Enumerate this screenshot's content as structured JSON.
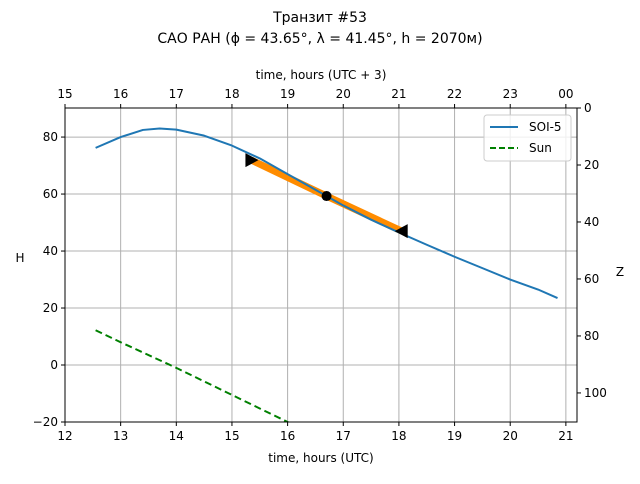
{
  "chart_data": {
    "type": "line",
    "title": "Транзит #53",
    "subtitle": "САО РАН (ϕ = 43.65°, λ = 41.45°, h = 2070м)",
    "xlabel": "time, hours (UTC)",
    "xlabel_top": "time, hours (UTC + 3)",
    "ylabel": "H",
    "ylabel_right": "Z",
    "xlim": [
      12,
      21.2
    ],
    "ylim": [
      -20,
      90.2
    ],
    "grid": true,
    "legend_placement": "top-right",
    "x_ticks": [
      "12",
      "13",
      "14",
      "15",
      "16",
      "17",
      "18",
      "19",
      "20",
      "21"
    ],
    "y_ticks": [
      "−20",
      "0",
      "20",
      "40",
      "60",
      "80"
    ],
    "x_top_ticks": [
      "15",
      "16",
      "17",
      "18",
      "19",
      "20",
      "21",
      "22",
      "23",
      "00"
    ],
    "z_ticks": [
      "0",
      "20",
      "40",
      "60",
      "80",
      "100"
    ],
    "series": [
      {
        "name": "SOI-5",
        "color": "#1f77b4",
        "style": "solid",
        "x": [
          12.55,
          13,
          13.4,
          13.7,
          14,
          14.5,
          15,
          15.5,
          16,
          16.5,
          17,
          17.5,
          18,
          18.5,
          19,
          19.5,
          20,
          20.5,
          20.85
        ],
        "y": [
          76.2,
          80,
          82.5,
          83,
          82.6,
          80.5,
          77,
          72.5,
          67,
          61.5,
          56,
          51,
          46.5,
          42.2,
          38,
          34,
          30,
          26.5,
          23.5
        ]
      },
      {
        "name": "Sun",
        "color": "#008000",
        "style": "dashed",
        "x": [
          12.55,
          13,
          14,
          15,
          16,
          16.3
        ],
        "y": [
          12.2,
          8,
          -1,
          -10.5,
          -20,
          -23
        ]
      }
    ],
    "transit": {
      "color": "#ff8c00",
      "start": [
        15.35,
        71.9
      ],
      "mid": [
        16.7,
        59.3
      ],
      "end": [
        18.05,
        47
      ]
    }
  }
}
